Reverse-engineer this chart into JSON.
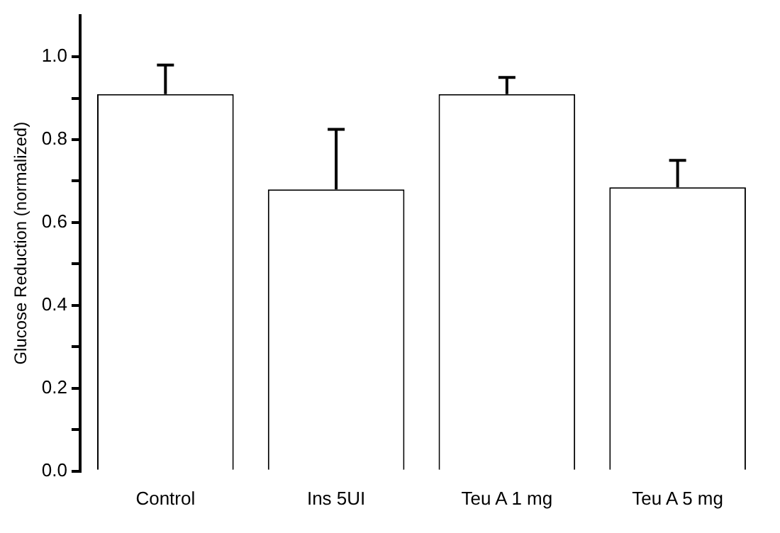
{
  "chart_data": {
    "type": "bar",
    "ylabel": "Glucose Reduction (normalized)",
    "categories": [
      "Control",
      "Ins 5UI",
      "Teu A 1 mg",
      "Teu A 5 mg"
    ],
    "values": [
      0.91,
      0.68,
      0.91,
      0.685
    ],
    "errors": [
      [
        0.91,
        0.98
      ],
      [
        0.68,
        0.825
      ],
      [
        0.91,
        0.95
      ],
      [
        0.685,
        0.75
      ]
    ],
    "color": "#ffffff",
    "ylim": [
      0,
      1.1
    ],
    "yticks": [
      {
        "value": 0,
        "label": "0.0"
      },
      {
        "value": 0.1,
        "label": null
      },
      {
        "value": 0.2,
        "label": "0.2"
      },
      {
        "value": 0.3,
        "label": null
      },
      {
        "value": 0.4,
        "label": "0.4"
      },
      {
        "value": 0.5,
        "label": null
      },
      {
        "value": 0.6,
        "label": "0.6"
      },
      {
        "value": 0.7,
        "label": null
      },
      {
        "value": 0.8,
        "label": "0.8"
      },
      {
        "value": 0.9,
        "label": null
      },
      {
        "value": 1,
        "label": "1.0"
      }
    ],
    "grid": false,
    "legend": false
  }
}
